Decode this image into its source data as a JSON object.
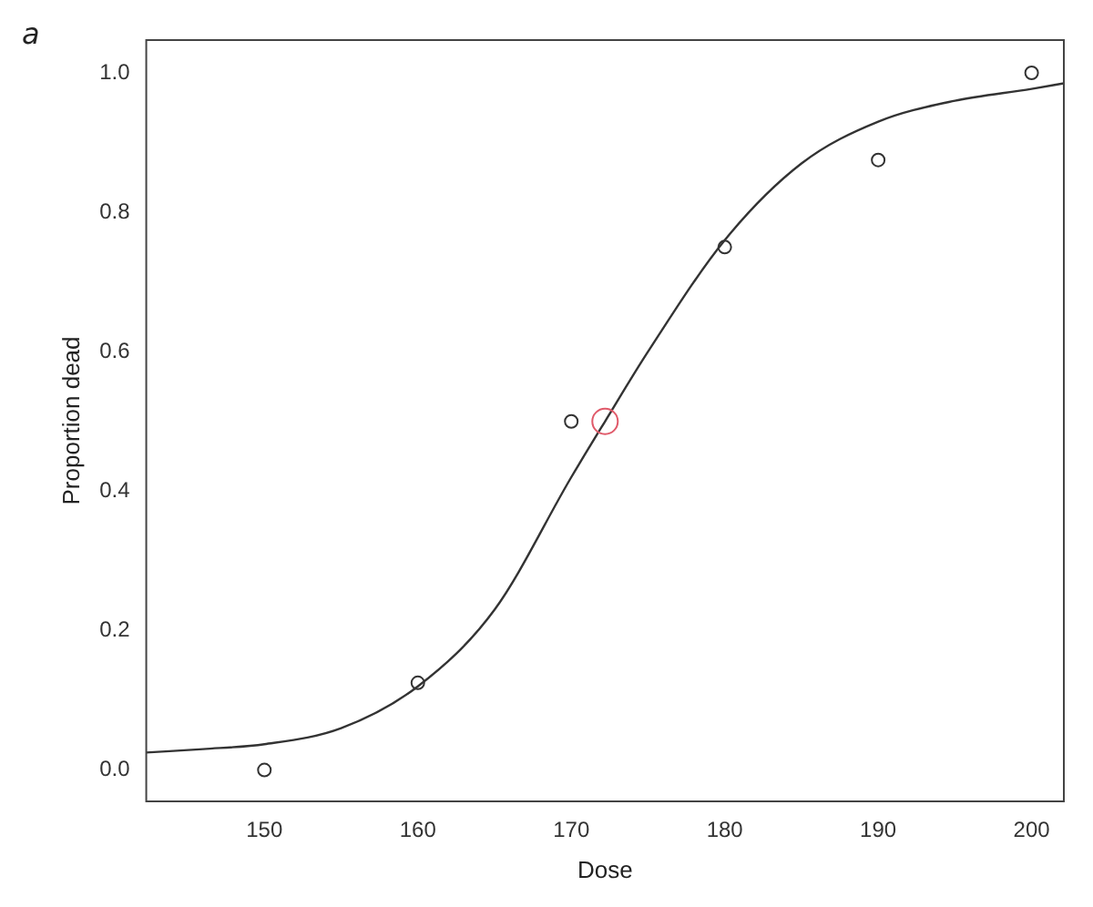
{
  "chart_data": {
    "type": "scatter",
    "xlabel": "Dose",
    "ylabel": "Proportion dead",
    "annotations": [
      "a"
    ],
    "xlim": [
      142.3,
      202.1
    ],
    "ylim": [
      -0.045,
      1.047
    ],
    "xticks": [
      150,
      160,
      170,
      180,
      190,
      200
    ],
    "yticks": [
      {
        "value": 0,
        "label": "0.0"
      },
      {
        "value": 0.2,
        "label": "0.2"
      },
      {
        "value": 0.4,
        "label": "0.4"
      },
      {
        "value": 0.6,
        "label": "0.6"
      },
      {
        "value": 0.8,
        "label": "0.8"
      },
      {
        "value": 1,
        "label": "1.0"
      }
    ],
    "grid": false,
    "legend": false,
    "marker": "circle",
    "series": [
      {
        "type": "line",
        "color": "#333333",
        "marker": "none",
        "x": [
          142.3,
          146,
          150,
          155,
          160,
          165,
          170,
          172.2,
          175,
          180,
          185,
          190,
          195,
          200,
          202.1
        ],
        "values": [
          0.025,
          0.03,
          0.037,
          0.06,
          0.12,
          0.23,
          0.42,
          0.5,
          0.6,
          0.76,
          0.87,
          0.93,
          0.96,
          0.977,
          0.985
        ]
      },
      {
        "type": "scatter",
        "color": "#333333",
        "x": [
          150,
          160,
          170,
          180,
          190,
          200
        ],
        "values": [
          0,
          0.125,
          0.5,
          0.75,
          0.875,
          1
        ]
      },
      {
        "type": "scatter",
        "color": "#e05a6a",
        "x": [
          172.2
        ],
        "values": [
          0.5
        ]
      }
    ]
  }
}
